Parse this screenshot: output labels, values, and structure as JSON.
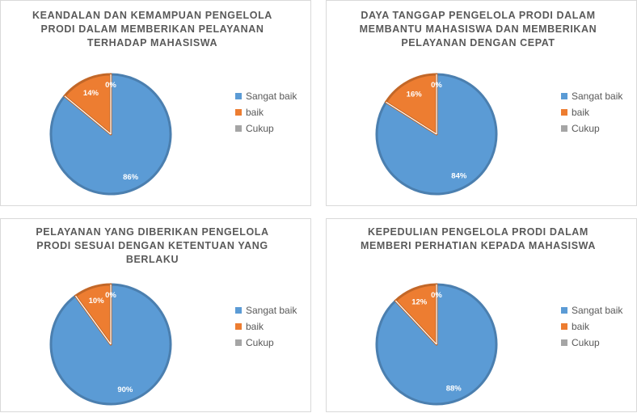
{
  "colors": {
    "sangat_baik": "#5b9bd5",
    "baik": "#ed7d31",
    "cukup": "#a5a5a5"
  },
  "chart_data": [
    {
      "type": "pie",
      "title": "KEANDALAN DAN KEMAMPUAN PENGELOLA PRODI DALAM MEMBERIKAN PELAYANAN TERHADAP MAHASISWA",
      "categories": [
        "Sangat baik",
        "baik",
        "Cukup"
      ],
      "values": [
        86,
        14,
        0
      ],
      "labels": [
        "86%",
        "14%",
        "0%"
      ],
      "legend": "right"
    },
    {
      "type": "pie",
      "title": "DAYA TANGGAP PENGELOLA PRODI DALAM MEMBANTU MAHASISWA DAN MEMBERIKAN PELAYANAN DENGAN CEPAT",
      "categories": [
        "Sangat baik",
        "baik",
        "Cukup"
      ],
      "values": [
        84,
        16,
        0
      ],
      "labels": [
        "84%",
        "16%",
        "0%"
      ],
      "legend": "right"
    },
    {
      "type": "pie",
      "title": "PELAYANAN YANG DIBERIKAN PENGELOLA PRODI SESUAI DENGAN KETENTUAN YANG BERLAKU",
      "categories": [
        "Sangat baik",
        "baik",
        "Cukup"
      ],
      "values": [
        90,
        10,
        0
      ],
      "labels": [
        "90%",
        "10%",
        "0%"
      ],
      "legend": "right"
    },
    {
      "type": "pie",
      "title": "KEPEDULIAN PENGELOLA  PRODI DALAM MEMBERI PERHATIAN KEPADA MAHASISWA",
      "categories": [
        "Sangat baik",
        "baik",
        "Cukup"
      ],
      "values": [
        88,
        12,
        0
      ],
      "labels": [
        "88%",
        "12%",
        "0%"
      ],
      "legend": "right"
    }
  ]
}
